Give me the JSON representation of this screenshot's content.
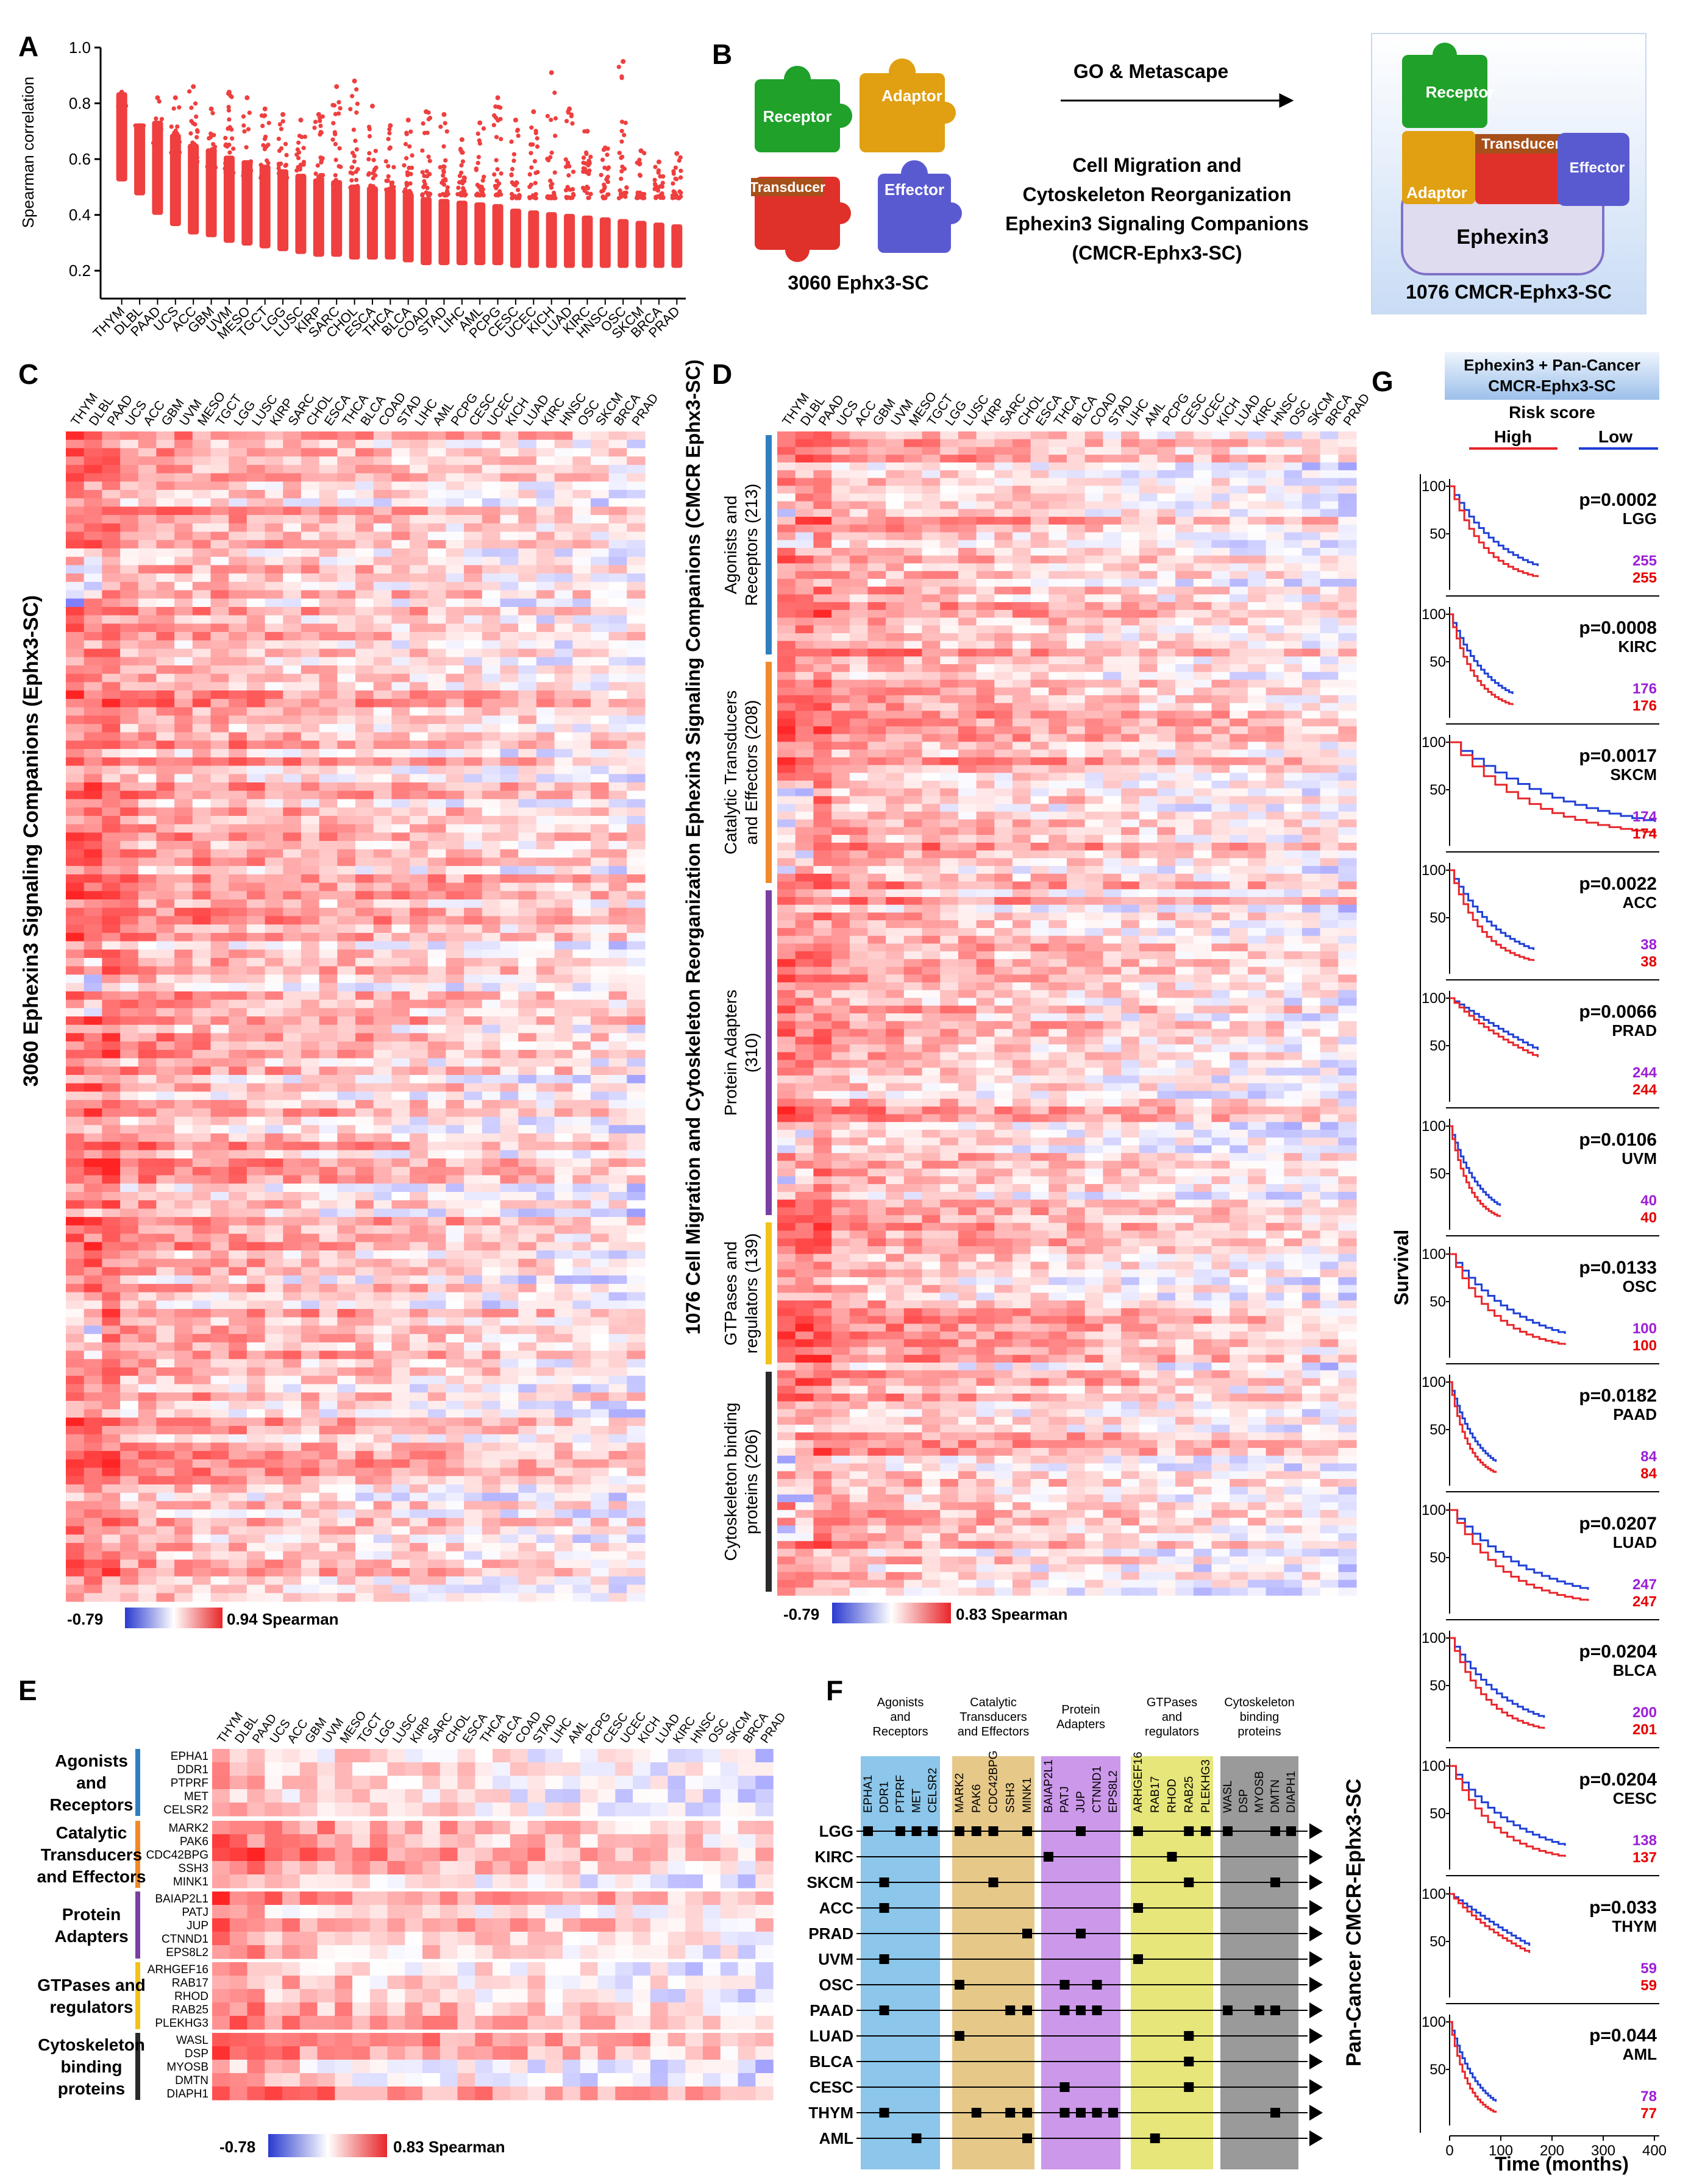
{
  "cancers": [
    "THYM",
    "DLBL",
    "PAAD",
    "UCS",
    "ACC",
    "GBM",
    "UVM",
    "MESO",
    "TGCT",
    "LGG",
    "LUSC",
    "KIRP",
    "SARC",
    "CHOL",
    "ESCA",
    "THCA",
    "BLCA",
    "COAD",
    "STAD",
    "LIHC",
    "AML",
    "PCPG",
    "CESC",
    "UCEC",
    "KICH",
    "LUAD",
    "KIRC",
    "HNSC",
    "OSC",
    "SKCM",
    "BRCA",
    "PRAD"
  ],
  "colors": {
    "high": "#e8262a",
    "low": "#1f3fd6",
    "purple_count": "#9b1fd6",
    "red_count": "#e60000"
  },
  "panelA": {
    "label": "A",
    "ylabel": "Spearman  correlation",
    "yticks": [
      "1.0",
      "0.8",
      "0.6",
      "0.4",
      "0.2"
    ]
  },
  "chart_data": {
    "type": "scatter",
    "title": "",
    "xlabel": "",
    "ylabel": "Spearman correlation",
    "ylim": [
      0.1,
      1.0
    ],
    "categories": [
      "THYM",
      "DLBL",
      "PAAD",
      "UCS",
      "ACC",
      "GBM",
      "UVM",
      "MESO",
      "TGCT",
      "LGG",
      "LUSC",
      "KIRP",
      "SARC",
      "CHOL",
      "ESCA",
      "THCA",
      "BLCA",
      "COAD",
      "STAD",
      "LIHC",
      "AML",
      "PCPG",
      "CESC",
      "UCEC",
      "KICH",
      "LUAD",
      "KIRC",
      "HNSC",
      "OSC",
      "SKCM",
      "BRCA",
      "PRAD"
    ],
    "min_values": [
      0.52,
      0.47,
      0.4,
      0.36,
      0.33,
      0.32,
      0.3,
      0.29,
      0.28,
      0.27,
      0.26,
      0.25,
      0.25,
      0.24,
      0.24,
      0.24,
      0.23,
      0.22,
      0.22,
      0.22,
      0.22,
      0.22,
      0.21,
      0.21,
      0.21,
      0.21,
      0.21,
      0.21,
      0.21,
      0.21,
      0.21,
      0.21
    ],
    "max_values": [
      0.84,
      0.72,
      0.82,
      0.82,
      0.86,
      0.78,
      0.84,
      0.82,
      0.78,
      0.76,
      0.74,
      0.76,
      0.86,
      0.88,
      0.79,
      0.72,
      0.74,
      0.77,
      0.76,
      0.67,
      0.73,
      0.82,
      0.74,
      0.77,
      0.91,
      0.78,
      0.7,
      0.64,
      0.95,
      0.63,
      0.59,
      0.62
    ]
  },
  "panelB": {
    "label": "B",
    "pieces": {
      "receptor": "Receptor",
      "adaptor": "Adaptor",
      "transducer": "Transducer",
      "effector": "Effector"
    },
    "left_caption": "3060 Ephx3-SC",
    "arrow_label": "GO & Metascape",
    "desc_lines": [
      "Cell Migration and",
      "Cytoskeleton Reorganization",
      "Ephexin3 Signaling Companions",
      "(CMCR-Ephx3-SC)"
    ],
    "right_pieces": {
      "receptor": "Receptor",
      "transducer": "Transducer",
      "adaptor": "Adaptor",
      "effector": "Effector",
      "base": "Ephexin3"
    },
    "right_caption": "1076 CMCR-Ephx3-SC"
  },
  "panelC": {
    "label": "C",
    "ylabel": "3060 Ephexin3 Signaling Companions (Ephx3-SC)",
    "scale_min": "-0.79",
    "scale_max": "0.94 Spearman"
  },
  "panelD": {
    "label": "D",
    "ylabel": "1076 Cell Migration and Cytoskeleton Reorganization Ephexin3 Signaling Companions (CMCR Ephx3-SC)",
    "groups": [
      "Agonists and Receptors (213)",
      "Catalytic Transducers and Effectors (208)",
      "Protein Adapters (310)",
      "GTPases and regulators (139)",
      "Cytoskeleton binding proteins (206)"
    ],
    "group_lines": [
      [
        "Agonists and",
        "Receptors (213)"
      ],
      [
        "Catalytic Transducers",
        "and Effectors (208)"
      ],
      [
        "Protein Adapters",
        "(310)"
      ],
      [
        "GTPases and",
        "regulators (139)"
      ],
      [
        "Cytoskeleton binding",
        "proteins (206)"
      ]
    ],
    "group_colors": [
      "#2f7fc0",
      "#ef8a2a",
      "#7a3fa0",
      "#f2c21c",
      "#2a2a2a"
    ],
    "scale_min": "-0.79",
    "scale_max": "0.83 Spearman"
  },
  "panelE": {
    "label": "E",
    "groups": [
      {
        "lines": [
          "Agonists",
          "and",
          "Receptors"
        ],
        "genes": [
          "EPHA1",
          "DDR1",
          "PTPRF",
          "MET",
          "CELSR2"
        ]
      },
      {
        "lines": [
          "Catalytic",
          "Transducers",
          "and Effectors"
        ],
        "genes": [
          "MARK2",
          "PAK6",
          "CDC42BPG",
          "SSH3",
          "MINK1"
        ]
      },
      {
        "lines": [
          "Protein",
          "Adapters"
        ],
        "genes": [
          "BAIAP2L1",
          "PATJ",
          "JUP",
          "CTNND1",
          "EPS8L2"
        ]
      },
      {
        "lines": [
          "GTPases and",
          "regulators"
        ],
        "genes": [
          "ARHGEF16",
          "RAB17",
          "RHOD",
          "RAB25",
          "PLEKHG3"
        ]
      },
      {
        "lines": [
          "Cytoskeleton",
          "binding",
          "proteins"
        ],
        "genes": [
          "WASL",
          "DSP",
          "MYOSB",
          "DMTN",
          "DIAPH1"
        ]
      }
    ],
    "scale_min": "-0.78",
    "scale_max": "0.83 Spearman"
  },
  "panelF": {
    "label": "F",
    "headers": [
      [
        "Agonists",
        "and",
        "Receptors"
      ],
      [
        "Catalytic",
        "Transducers",
        "and Effectors"
      ],
      [
        "Protein",
        "Adapters"
      ],
      [
        "GTPases",
        "and",
        "regulators"
      ],
      [
        "Cytoskeleton",
        "binding",
        "proteins"
      ]
    ],
    "genes": [
      "EPHA1",
      "DDR1",
      "PTPRF",
      "MET",
      "CELSR2",
      "MARK2",
      "PAK6",
      "CDC42BPG",
      "SSH3",
      "MINK1",
      "BAIAP2L1",
      "PATJ",
      "JUP",
      "CTNND1",
      "EPS8L2",
      "ARHGEF16",
      "RAB17",
      "RHOD",
      "RAB25",
      "PLEKHG3",
      "WASL",
      "DSP",
      "MYOSB",
      "DMTN",
      "DIAPH1"
    ],
    "rows": [
      "LGG",
      "KIRC",
      "SKCM",
      "ACC",
      "PRAD",
      "UVM",
      "OSC",
      "PAAD",
      "LUAD",
      "BLCA",
      "CESC",
      "THYM",
      "AML"
    ],
    "marks": [
      [
        0,
        2,
        3,
        4,
        5,
        6,
        7,
        9,
        12,
        15,
        18,
        19,
        20,
        23,
        24
      ],
      [
        10,
        17
      ],
      [
        1,
        7,
        18,
        23
      ],
      [
        1,
        15
      ],
      [
        9,
        12
      ],
      [
        1,
        15
      ],
      [
        5,
        11,
        13
      ],
      [
        1,
        8,
        9,
        11,
        12,
        13,
        20,
        22,
        23
      ],
      [
        5,
        18
      ],
      [
        18
      ],
      [
        11,
        18
      ],
      [
        1,
        6,
        8,
        9,
        11,
        12,
        13,
        14,
        23
      ],
      [
        3,
        9,
        16
      ]
    ],
    "side_label": "Pan-Cancer CMCR-Ephx3-SC"
  },
  "panelG": {
    "label": "G",
    "header_lines": [
      "Ephexin3 + Pan-Cancer",
      "CMCR-Ephx3-SC"
    ],
    "risk_label": "Risk score",
    "high_label": "High",
    "low_label": "Low",
    "ylabel": "Survival",
    "xlabel": "Time (months)",
    "xticks": [
      "0",
      "100",
      "200",
      "300",
      "400"
    ],
    "plots": [
      {
        "p": "p=0.0002",
        "cancer": "LGG",
        "n_low": "255",
        "n_high": "255",
        "tail": 1,
        "endx": 0.42
      },
      {
        "p": "p=0.0008",
        "cancer": "KIRC",
        "n_low": "176",
        "n_high": "176",
        "tail": 2,
        "endx": 0.3
      },
      {
        "p": "p=0.0017",
        "cancer": "SKCM",
        "n_low": "174",
        "n_high": "174",
        "tail": 1,
        "endx": 0.98
      },
      {
        "p": "p=0.0022",
        "cancer": "ACC",
        "n_low": "38",
        "n_high": "38",
        "tail": 3,
        "endx": 0.4
      },
      {
        "p": "p=0.0066",
        "cancer": "PRAD",
        "n_low": "244",
        "n_high": "244",
        "tail": 4,
        "endx": 0.42
      },
      {
        "p": "p=0.0106",
        "cancer": "UVM",
        "n_low": "40",
        "n_high": "40",
        "tail": 3,
        "endx": 0.24
      },
      {
        "p": "p=0.0133",
        "cancer": "OSC",
        "n_low": "100",
        "n_high": "100",
        "tail": 1,
        "endx": 0.55
      },
      {
        "p": "p=0.0182",
        "cancer": "PAAD",
        "n_low": "84",
        "n_high": "84",
        "tail": 1,
        "endx": 0.22
      },
      {
        "p": "p=0.0207",
        "cancer": "LUAD",
        "n_low": "247",
        "n_high": "247",
        "tail": 1,
        "endx": 0.66
      },
      {
        "p": "p=0.0204",
        "cancer": "BLCA",
        "n_low": "200",
        "n_high": "201",
        "tail": 1,
        "endx": 0.45
      },
      {
        "p": "p=0.0204",
        "cancer": "CESC",
        "n_low": "138",
        "n_high": "137",
        "tail": 2,
        "endx": 0.55
      },
      {
        "p": "p=0.033",
        "cancer": "THYM",
        "n_low": "59",
        "n_high": "59",
        "tail": 4,
        "endx": 0.38
      },
      {
        "p": "p=0.044",
        "cancer": "AML",
        "n_low": "78",
        "n_high": "77",
        "tail": 1,
        "endx": 0.22
      }
    ]
  }
}
